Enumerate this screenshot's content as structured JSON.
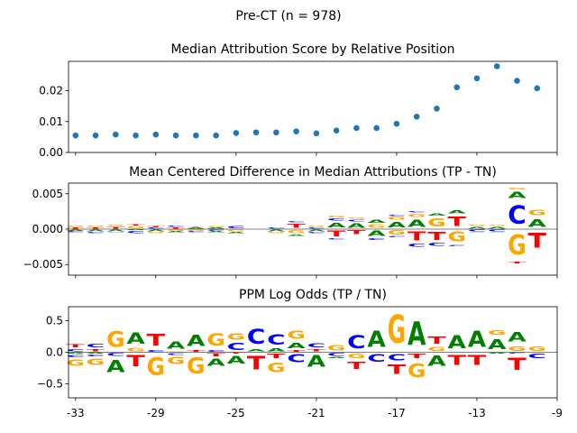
{
  "figure": {
    "suptitle": "Pre-CT (n = 978)",
    "colors": {
      "A": "#008000",
      "C": "#0000ff",
      "G": "#ffa500",
      "T": "#ff0000",
      "dot": "#1f77b4"
    }
  },
  "chart_data": [
    {
      "type": "scatter",
      "title": "Median Attribution Score by Relative Position",
      "x": [
        -33,
        -32,
        -31,
        -30,
        -29,
        -28,
        -27,
        -26,
        -25,
        -24,
        -23,
        -22,
        -21,
        -20,
        -19,
        -18,
        -17,
        -16,
        -15,
        -14,
        -13,
        -12,
        -11,
        -10
      ],
      "y": [
        0.0055,
        0.0055,
        0.0058,
        0.0055,
        0.0058,
        0.0055,
        0.0055,
        0.0055,
        0.0063,
        0.0065,
        0.0065,
        0.0068,
        0.0062,
        0.0071,
        0.0079,
        0.0079,
        0.0093,
        0.0116,
        0.0142,
        0.0211,
        0.024,
        0.0279,
        0.0232,
        0.0208
      ],
      "xlim": [
        -33.35,
        -9
      ],
      "ylim": [
        0,
        0.0295
      ],
      "yticks": [
        0.0,
        0.01,
        0.02
      ],
      "ytick_labels": [
        "0.00",
        "0.01",
        "0.02"
      ]
    },
    {
      "type": "logo",
      "title": "Mean Centered Difference in Median Attributions (TP - TN)",
      "ylim": [
        -0.0065,
        0.0065
      ],
      "yticks": [
        0.005,
        0.0,
        -0.005
      ],
      "ytick_labels": [
        "0.005",
        "0.000",
        "−0.005"
      ],
      "positions": [
        {
          "x": -33,
          "up": [
            [
              "T",
              0.0003
            ],
            [
              "G",
              0.0002
            ]
          ],
          "down": [
            [
              "A",
              -0.0003
            ],
            [
              "C",
              -0.0002
            ]
          ]
        },
        {
          "x": -32,
          "up": [
            [
              "T",
              0.0003
            ],
            [
              "G",
              0.0002
            ]
          ],
          "down": [
            [
              "A",
              -0.0004
            ],
            [
              "C",
              -0.0002
            ]
          ]
        },
        {
          "x": -31,
          "up": [
            [
              "T",
              0.0004
            ],
            [
              "G",
              0.0002
            ]
          ],
          "down": [
            [
              "A",
              -0.0004
            ],
            [
              "C",
              -0.0001
            ]
          ]
        },
        {
          "x": -30,
          "up": [
            [
              "G",
              0.0005
            ],
            [
              "T",
              0.0002
            ]
          ],
          "down": [
            [
              "A",
              -0.0002
            ],
            [
              "C",
              -0.0005
            ]
          ]
        },
        {
          "x": -29,
          "up": [
            [
              "C",
              0.0002
            ],
            [
              "T",
              0.0002
            ]
          ],
          "down": [
            [
              "A",
              -0.0004
            ],
            [
              "G",
              -0.0002
            ]
          ]
        },
        {
          "x": -28,
          "up": [
            [
              "T",
              0.0003
            ],
            [
              "C",
              0.0002
            ]
          ],
          "down": [
            [
              "G",
              -0.0003
            ],
            [
              "A",
              -0.0002
            ]
          ]
        },
        {
          "x": -27,
          "up": [
            [
              "A",
              0.0003
            ],
            [
              "T",
              0.0001
            ]
          ],
          "down": [
            [
              "G",
              -0.0003
            ],
            [
              "C",
              -0.0002
            ]
          ]
        },
        {
          "x": -26,
          "up": [
            [
              "A",
              0.0002
            ],
            [
              "G",
              0.0002
            ]
          ],
          "down": [
            [
              "C",
              -0.0003
            ],
            [
              "A",
              -0.0002
            ]
          ]
        },
        {
          "x": -25,
          "up": [
            [
              "C",
              0.0005
            ]
          ],
          "down": [
            [
              "G",
              -0.0004
            ],
            [
              "A",
              -0.0002
            ]
          ]
        },
        {
          "x": -24,
          "up": [],
          "down": []
        },
        {
          "x": -23,
          "up": [
            [
              "C",
              0.0003
            ]
          ],
          "down": [
            [
              "A",
              -0.0004
            ],
            [
              "G",
              -0.0002
            ]
          ]
        },
        {
          "x": -22,
          "up": [
            [
              "T",
              0.0009
            ],
            [
              "C",
              0.0002
            ]
          ],
          "down": [
            [
              "G",
              -0.0007
            ],
            [
              "A",
              -0.0003
            ]
          ]
        },
        {
          "x": -21,
          "up": [
            [
              "C",
              0.0003
            ],
            [
              "G",
              0.0002
            ]
          ],
          "down": [
            [
              "A",
              -0.0004
            ],
            [
              "C",
              -0.0002
            ]
          ]
        },
        {
          "x": -20,
          "up": [
            [
              "A",
              0.0011
            ],
            [
              "C",
              0.0005
            ],
            [
              "G",
              0.0004
            ]
          ],
          "down": [
            [
              "T",
              -0.0013
            ],
            [
              "C",
              -0.0002
            ]
          ]
        },
        {
          "x": -19,
          "up": [
            [
              "A",
              0.001
            ],
            [
              "C",
              0.0004
            ],
            [
              "G",
              0.0002
            ]
          ],
          "down": [
            [
              "T",
              -0.0009
            ]
          ]
        },
        {
          "x": -18,
          "up": [
            [
              "G",
              0.0008
            ],
            [
              "A",
              0.0006
            ]
          ],
          "down": [
            [
              "A",
              -0.0012
            ],
            [
              "C",
              -0.0004
            ]
          ]
        },
        {
          "x": -17,
          "up": [
            [
              "A",
              0.0012
            ],
            [
              "G",
              0.0006
            ],
            [
              "C",
              0.0002
            ]
          ],
          "down": [
            [
              "G",
              -0.001
            ],
            [
              "C",
              -0.0002
            ]
          ]
        },
        {
          "x": -16,
          "up": [
            [
              "A",
              0.0016
            ],
            [
              "G",
              0.0007
            ],
            [
              "C",
              0.0003
            ]
          ],
          "down": [
            [
              "T",
              -0.002
            ],
            [
              "C",
              -0.0006
            ]
          ]
        },
        {
          "x": -15,
          "up": [
            [
              "G",
              0.0018
            ],
            [
              "A",
              0.0005
            ]
          ],
          "down": [
            [
              "T",
              -0.0019
            ],
            [
              "C",
              -0.0006
            ]
          ]
        },
        {
          "x": -14,
          "up": [
            [
              "T",
              0.0021
            ],
            [
              "A",
              0.0007
            ]
          ],
          "down": [
            [
              "G",
              -0.0022
            ],
            [
              "C",
              -0.0003
            ]
          ]
        },
        {
          "x": -13,
          "up": [
            [
              "A",
              0.0004
            ],
            [
              "G",
              0.0002
            ]
          ],
          "down": [
            [
              "C",
              -0.0004
            ],
            [
              "A",
              -0.0001
            ]
          ]
        },
        {
          "x": -12,
          "up": [
            [
              "A",
              0.0004
            ],
            [
              "G",
              0.0002
            ]
          ],
          "down": [
            [
              "C",
              -0.0004
            ],
            [
              "A",
              -0.0001
            ]
          ]
        },
        {
          "x": -11,
          "up": [
            [
              "C",
              0.0041
            ],
            [
              "A",
              0.0014
            ],
            [
              "G",
              0.0004
            ]
          ],
          "down": [
            [
              "G",
              -0.0045
            ],
            [
              "T",
              -0.0004
            ]
          ]
        },
        {
          "x": -10,
          "up": [
            [
              "A",
              0.0017
            ],
            [
              "G",
              0.0012
            ]
          ],
          "down": [
            [
              "T",
              -0.0033
            ]
          ]
        }
      ]
    },
    {
      "type": "logo",
      "title": "PPM Log Odds (TP / TN)",
      "ylim": [
        -0.72,
        0.72
      ],
      "yticks": [
        0.5,
        0.0,
        -0.5
      ],
      "ytick_labels": [
        "0.5",
        "0.0",
        "−0.5"
      ],
      "xticks": [
        -33,
        -29,
        -25,
        -21,
        -17,
        -13,
        -9
      ],
      "xtick_labels": [
        "-33",
        "-29",
        "-25",
        "-21",
        "-17",
        "-13",
        "-9"
      ],
      "positions": [
        {
          "x": -33,
          "up": [
            [
              "C",
              0.06
            ],
            [
              "T",
              0.08
            ]
          ],
          "down": [
            [
              "A",
              -0.03
            ],
            [
              "C",
              -0.06
            ],
            [
              "G",
              -0.16
            ]
          ]
        },
        {
          "x": -32,
          "up": [
            [
              "T",
              0.06
            ],
            [
              "C",
              0.09
            ]
          ],
          "down": [
            [
              "A",
              -0.03
            ],
            [
              "C",
              -0.04
            ],
            [
              "G",
              -0.16
            ]
          ]
        },
        {
          "x": -31,
          "up": [
            [
              "G",
              0.4
            ]
          ],
          "down": [
            [
              "C",
              -0.07
            ],
            [
              "A",
              -0.31
            ]
          ]
        },
        {
          "x": -30,
          "up": [
            [
              "G",
              0.08
            ],
            [
              "A",
              0.28
            ]
          ],
          "down": [
            [
              "T",
              -0.28
            ]
          ]
        },
        {
          "x": -29,
          "up": [
            [
              "C",
              0.05
            ],
            [
              "T",
              0.29
            ]
          ],
          "down": [
            [
              "G",
              -0.45
            ]
          ]
        },
        {
          "x": -28,
          "up": [
            [
              "G",
              0.02
            ],
            [
              "A",
              0.17
            ]
          ],
          "down": [
            [
              "C",
              -0.05
            ],
            [
              "G",
              -0.17
            ]
          ]
        },
        {
          "x": -27,
          "up": [
            [
              "T",
              0.04
            ],
            [
              "A",
              0.28
            ]
          ],
          "down": [
            [
              "G",
              -0.42
            ]
          ]
        },
        {
          "x": -26,
          "up": [
            [
              "C",
              0.04
            ],
            [
              "G",
              0.31
            ]
          ],
          "down": [
            [
              "T",
              -0.08
            ],
            [
              "A",
              -0.17
            ]
          ]
        },
        {
          "x": -25,
          "up": [
            [
              "C",
              0.17
            ],
            [
              "G",
              0.16
            ]
          ],
          "down": [
            [
              "T",
              -0.03
            ],
            [
              "A",
              -0.19
            ]
          ]
        },
        {
          "x": -24,
          "up": [
            [
              "A",
              0.06
            ],
            [
              "C",
              0.37
            ]
          ],
          "down": [
            [
              "T",
              -0.34
            ]
          ]
        },
        {
          "x": -23,
          "up": [
            [
              "A",
              0.07
            ],
            [
              "C",
              0.26
            ]
          ],
          "down": [
            [
              "T",
              -0.12
            ],
            [
              "G",
              -0.24
            ]
          ]
        },
        {
          "x": -22,
          "up": [
            [
              "T",
              0.04
            ],
            [
              "A",
              0.13
            ],
            [
              "G",
              0.21
            ]
          ],
          "down": [
            [
              "C",
              -0.2
            ]
          ]
        },
        {
          "x": -21,
          "up": [
            [
              "T",
              0.06
            ],
            [
              "C",
              0.1
            ]
          ],
          "down": [
            [
              "A",
              -0.29
            ]
          ]
        },
        {
          "x": -20,
          "up": [
            [
              "G",
              0.13
            ]
          ],
          "down": [
            [
              "C",
              -0.07
            ],
            [
              "A",
              -0.03
            ]
          ]
        },
        {
          "x": -19,
          "up": [
            [
              "C",
              0.32
            ]
          ],
          "down": [
            [
              "G",
              -0.12
            ],
            [
              "T",
              -0.18
            ]
          ]
        },
        {
          "x": -18,
          "up": [
            [
              "A",
              0.42
            ]
          ],
          "down": [
            [
              "C",
              -0.19
            ]
          ]
        },
        {
          "x": -17,
          "up": [
            [
              "G",
              0.72
            ]
          ],
          "down": [
            [
              "C",
              -0.16
            ],
            [
              "T",
              -0.23
            ]
          ]
        },
        {
          "x": -16,
          "up": [
            [
              "A",
              0.59
            ]
          ],
          "down": [
            [
              "T",
              -0.12
            ],
            [
              "G",
              -0.34
            ]
          ]
        },
        {
          "x": -15,
          "up": [
            [
              "G",
              0.1
            ],
            [
              "T",
              0.17
            ]
          ],
          "down": [
            [
              "A",
              -0.27
            ]
          ]
        },
        {
          "x": -14,
          "up": [
            [
              "A",
              0.32
            ]
          ],
          "down": [
            [
              "T",
              -0.25
            ]
          ]
        },
        {
          "x": -13,
          "up": [
            [
              "A",
              0.42
            ]
          ],
          "down": [
            [
              "T",
              -0.25
            ]
          ]
        },
        {
          "x": -12,
          "up": [
            [
              "A",
              0.25
            ],
            [
              "G",
              0.12
            ]
          ],
          "down": [
            [
              "A",
              -0.03
            ]
          ]
        },
        {
          "x": -11,
          "up": [
            [
              "G",
              0.12
            ],
            [
              "A",
              0.24
            ]
          ],
          "down": [
            [
              "C",
              -0.03
            ],
            [
              "T",
              -0.31
            ]
          ]
        },
        {
          "x": -10,
          "up": [
            [
              "G",
              0.12
            ]
          ],
          "down": [
            [
              "C",
              -0.12
            ]
          ]
        }
      ]
    }
  ]
}
